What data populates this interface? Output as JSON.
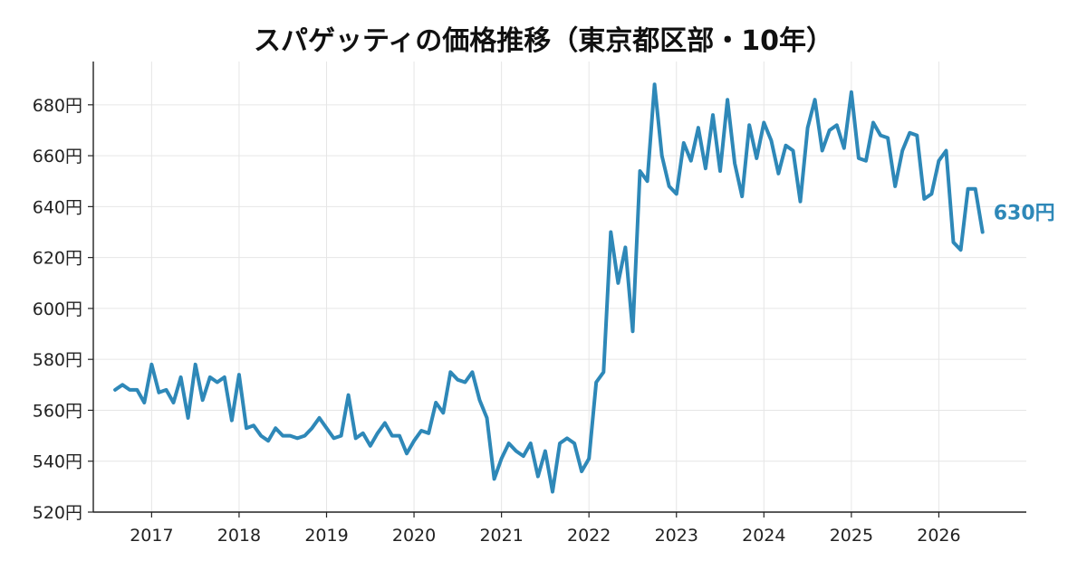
{
  "chart_data": {
    "type": "line",
    "title": "スパゲッティの価格推移（東京都区部・10年）",
    "xlabel": "",
    "ylabel": "",
    "ylim": [
      520,
      697
    ],
    "xlim": [
      "2016-05-01",
      "2027-01-01"
    ],
    "y_ticks": [
      520,
      540,
      560,
      580,
      600,
      620,
      640,
      660,
      680
    ],
    "y_tick_suffix": "円",
    "x_ticks": [
      "2017",
      "2018",
      "2019",
      "2020",
      "2021",
      "2022",
      "2023",
      "2024",
      "2025",
      "2026"
    ],
    "grid": true,
    "line_color": "#2e88b8",
    "end_label": "630円",
    "series": [
      {
        "x": [
          "2016-08",
          "2016-09",
          "2016-10",
          "2016-11",
          "2016-12",
          "2017-01",
          "2017-02",
          "2017-03",
          "2017-04",
          "2017-05",
          "2017-06",
          "2017-07",
          "2017-08",
          "2017-09",
          "2017-10",
          "2017-11",
          "2017-12",
          "2018-01",
          "2018-02",
          "2018-03",
          "2018-04",
          "2018-05",
          "2018-06",
          "2018-07",
          "2018-08",
          "2018-09",
          "2018-10",
          "2018-11",
          "2018-12",
          "2019-01",
          "2019-02",
          "2019-03",
          "2019-04",
          "2019-05",
          "2019-06",
          "2019-07",
          "2019-08",
          "2019-09",
          "2019-10",
          "2019-11",
          "2019-12",
          "2020-01",
          "2020-02",
          "2020-03",
          "2020-04",
          "2020-05",
          "2020-06",
          "2020-07",
          "2020-08",
          "2020-09",
          "2020-10",
          "2020-11",
          "2020-12",
          "2021-01",
          "2021-02",
          "2021-03",
          "2021-04",
          "2021-05",
          "2021-06",
          "2021-07",
          "2021-08",
          "2021-09",
          "2021-10",
          "2021-11",
          "2021-12",
          "2022-01",
          "2022-02",
          "2022-03",
          "2022-04",
          "2022-05",
          "2022-06",
          "2022-07",
          "2022-08",
          "2022-09",
          "2022-10",
          "2022-11",
          "2022-12",
          "2023-01",
          "2023-02",
          "2023-03",
          "2023-04",
          "2023-05",
          "2023-06",
          "2023-07",
          "2023-08",
          "2023-09",
          "2023-10",
          "2023-11",
          "2023-12",
          "2024-01",
          "2024-02",
          "2024-03",
          "2024-04",
          "2024-05",
          "2024-06",
          "2024-07",
          "2024-08",
          "2024-09",
          "2024-10",
          "2024-11",
          "2024-12",
          "2025-01",
          "2025-02",
          "2025-03",
          "2025-04",
          "2025-05",
          "2025-06",
          "2025-07",
          "2025-08",
          "2025-09",
          "2025-10",
          "2025-11",
          "2025-12",
          "2026-01",
          "2026-02",
          "2026-03",
          "2026-04",
          "2026-05",
          "2026-06",
          "2026-07"
        ],
        "values": [
          568,
          570,
          568,
          568,
          563,
          578,
          567,
          568,
          563,
          573,
          557,
          578,
          564,
          573,
          571,
          573,
          556,
          574,
          553,
          554,
          550,
          548,
          553,
          550,
          550,
          549,
          550,
          553,
          557,
          553,
          549,
          550,
          566,
          549,
          551,
          546,
          551,
          555,
          550,
          550,
          543,
          548,
          552,
          551,
          563,
          559,
          575,
          572,
          571,
          575,
          564,
          557,
          533,
          541,
          547,
          544,
          542,
          547,
          534,
          544,
          528,
          547,
          549,
          547,
          536,
          541,
          571,
          575,
          630,
          610,
          624,
          591,
          654,
          650,
          688,
          660,
          648,
          645,
          665,
          658,
          671,
          655,
          676,
          654,
          682,
          657,
          644,
          672,
          659,
          673,
          666,
          653,
          664,
          662,
          642,
          671,
          682,
          662,
          670,
          672,
          663,
          685,
          659,
          658,
          673,
          668,
          667,
          648,
          662,
          669,
          668,
          643,
          645,
          658,
          662,
          626,
          623,
          647,
          647,
          630
        ]
      }
    ]
  }
}
